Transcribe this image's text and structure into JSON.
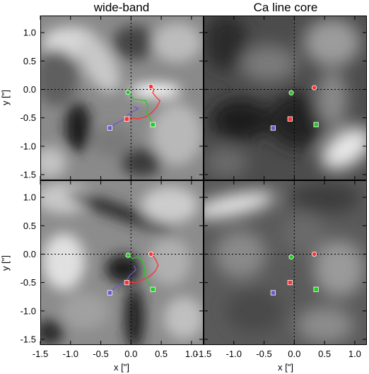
{
  "chart_data": {
    "type": "scatter",
    "layout": "2x2 image grid",
    "column_titles": [
      "wide-band",
      "Ca line core"
    ],
    "xlabel": "x [\"]",
    "ylabel": "y [\"]",
    "xlim": [
      -1.5,
      1.2
    ],
    "ylim": [
      -1.6,
      1.3
    ],
    "x_ticks": [
      -1.5,
      -1.0,
      -0.5,
      0.0,
      0.5,
      1.0
    ],
    "y_ticks": [
      -1.5,
      -1.0,
      -0.5,
      0.0,
      0.5,
      1.0
    ],
    "x_tick_labels": [
      "-1.5",
      "-1.0",
      "-0.5",
      "0.0",
      "0.5",
      "1.0"
    ],
    "x_tick_labels_right": [
      "-1.5",
      "-1.0",
      "-0.5",
      "0.0",
      "0.5",
      "1.0"
    ],
    "y_tick_labels": [
      "-1.5",
      "-1.0",
      "-0.5",
      "0.0",
      "0.5",
      "1.0"
    ],
    "crosshair": {
      "x": 0.0,
      "y": 0.0,
      "style": "dotted"
    },
    "colors": {
      "red": "#ff3030",
      "green": "#22cc22",
      "blue": "#6a5acd"
    },
    "panels": [
      {
        "row": 1,
        "column": "wide-band",
        "tracks": [
          {
            "color": "red",
            "points": [
              [
                0.33,
                0.05
              ],
              [
                0.38,
                0.0
              ],
              [
                0.36,
                -0.06
              ],
              [
                0.42,
                -0.14
              ],
              [
                0.48,
                -0.2
              ],
              [
                0.42,
                -0.32
              ],
              [
                0.33,
                -0.42
              ],
              [
                0.25,
                -0.48
              ],
              [
                0.12,
                -0.52
              ],
              [
                0.0,
                -0.5
              ],
              [
                -0.07,
                -0.52
              ]
            ]
          },
          {
            "color": "green",
            "points": [
              [
                -0.05,
                -0.05
              ],
              [
                0.0,
                -0.1
              ],
              [
                0.05,
                -0.18
              ],
              [
                0.12,
                -0.18
              ],
              [
                0.25,
                -0.2
              ],
              [
                0.28,
                -0.3
              ],
              [
                0.26,
                -0.42
              ],
              [
                0.32,
                -0.52
              ],
              [
                0.36,
                -0.62
              ]
            ]
          },
          {
            "color": "blue",
            "points": [
              [
                0.05,
                -0.3
              ],
              [
                0.12,
                -0.34
              ],
              [
                0.02,
                -0.4
              ],
              [
                -0.05,
                -0.45
              ],
              [
                -0.08,
                -0.5
              ],
              [
                -0.15,
                -0.55
              ],
              [
                -0.25,
                -0.6
              ],
              [
                -0.35,
                -0.68
              ]
            ]
          }
        ],
        "markers": [
          {
            "color": "red",
            "shape": "circle",
            "x": 0.33,
            "y": 0.05
          },
          {
            "color": "green",
            "shape": "circle",
            "x": -0.05,
            "y": -0.05
          },
          {
            "color": "red",
            "shape": "square",
            "x": -0.07,
            "y": -0.52
          },
          {
            "color": "green",
            "shape": "square",
            "x": 0.36,
            "y": -0.62
          },
          {
            "color": "blue",
            "shape": "square",
            "x": -0.35,
            "y": -0.68
          }
        ]
      },
      {
        "row": 1,
        "column": "Ca line core",
        "tracks": [],
        "markers": [
          {
            "color": "red",
            "shape": "circle",
            "x": 0.33,
            "y": 0.03
          },
          {
            "color": "green",
            "shape": "circle",
            "x": -0.05,
            "y": -0.06
          },
          {
            "color": "red",
            "shape": "square",
            "x": -0.07,
            "y": -0.52
          },
          {
            "color": "green",
            "shape": "square",
            "x": 0.36,
            "y": -0.62
          },
          {
            "color": "blue",
            "shape": "square",
            "x": -0.35,
            "y": -0.68
          }
        ]
      },
      {
        "row": 2,
        "column": "wide-band",
        "tracks": [
          {
            "color": "red",
            "points": [
              [
                0.33,
                0.0
              ],
              [
                0.38,
                -0.05
              ],
              [
                0.42,
                -0.12
              ],
              [
                0.45,
                -0.2
              ],
              [
                0.4,
                -0.3
              ],
              [
                0.3,
                -0.4
              ],
              [
                0.2,
                -0.45
              ],
              [
                0.08,
                -0.5
              ],
              [
                -0.07,
                -0.5
              ]
            ]
          },
          {
            "color": "green",
            "points": [
              [
                -0.05,
                -0.02
              ],
              [
                0.02,
                -0.08
              ],
              [
                0.1,
                -0.05
              ],
              [
                0.18,
                -0.1
              ],
              [
                0.22,
                -0.22
              ],
              [
                0.22,
                -0.35
              ],
              [
                0.26,
                -0.45
              ],
              [
                0.32,
                -0.55
              ],
              [
                0.36,
                -0.62
              ]
            ]
          },
          {
            "color": "blue",
            "points": [
              [
                0.05,
                -0.2
              ],
              [
                0.08,
                -0.28
              ],
              [
                0.0,
                -0.35
              ],
              [
                -0.05,
                -0.42
              ],
              [
                -0.1,
                -0.5
              ],
              [
                -0.2,
                -0.55
              ],
              [
                -0.3,
                -0.62
              ],
              [
                -0.35,
                -0.68
              ]
            ]
          }
        ],
        "markers": [
          {
            "color": "red",
            "shape": "circle",
            "x": 0.33,
            "y": 0.0
          },
          {
            "color": "green",
            "shape": "circle",
            "x": -0.05,
            "y": -0.02
          },
          {
            "color": "red",
            "shape": "square",
            "x": -0.07,
            "y": -0.5
          },
          {
            "color": "green",
            "shape": "square",
            "x": 0.36,
            "y": -0.62
          },
          {
            "color": "blue",
            "shape": "square",
            "x": -0.35,
            "y": -0.68
          }
        ]
      },
      {
        "row": 2,
        "column": "Ca line core",
        "tracks": [],
        "markers": [
          {
            "color": "red",
            "shape": "circle",
            "x": 0.33,
            "y": 0.0
          },
          {
            "color": "green",
            "shape": "circle",
            "x": -0.05,
            "y": -0.05
          },
          {
            "color": "red",
            "shape": "square",
            "x": -0.07,
            "y": -0.5
          },
          {
            "color": "green",
            "shape": "square",
            "x": 0.36,
            "y": -0.62
          },
          {
            "color": "blue",
            "shape": "square",
            "x": -0.35,
            "y": -0.68
          }
        ]
      }
    ]
  }
}
